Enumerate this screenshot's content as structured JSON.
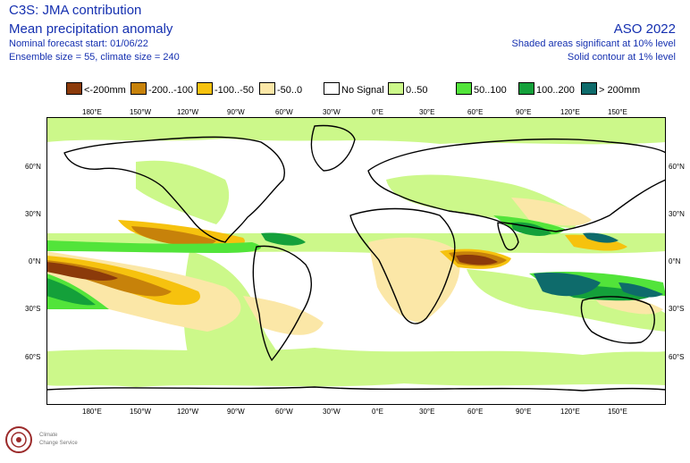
{
  "header": {
    "title": "C3S: JMA contribution",
    "subtitle": "Mean precipitation anomaly",
    "forecast_start": "Nominal forecast start: 01/06/22",
    "ensemble": "Ensemble size = 55, climate size = 240",
    "season": "ASO 2022",
    "significance_shaded": "Shaded areas significant at 10% level",
    "significance_contour": "Solid contour at 1% level"
  },
  "legend": [
    {
      "label": "<-200mm",
      "color": "#8b3a0a"
    },
    {
      "label": "-200..-100",
      "color": "#c7820a"
    },
    {
      "label": "-100..-50",
      "color": "#f6c20e"
    },
    {
      "label": "-50..0",
      "color": "#fbe7a7"
    },
    {
      "label": "No Signal",
      "color": "#ffffff"
    },
    {
      "label": "0..50",
      "color": "#ccf88a"
    },
    {
      "label": "50..100",
      "color": "#52e43a"
    },
    {
      "label": "100..200",
      "color": "#14a03a"
    },
    {
      "label": "> 200mm",
      "color": "#0e6b6b"
    }
  ],
  "axes": {
    "lon_labels": [
      "180°E",
      "150°W",
      "120°W",
      "90°W",
      "60°W",
      "30°W",
      "0°E",
      "30°E",
      "60°E",
      "90°E",
      "120°E",
      "150°E"
    ],
    "lat_labels": [
      "60°N",
      "30°N",
      "0°N",
      "30°S",
      "60°S"
    ]
  },
  "logo": {
    "line1": "Climate",
    "line2": "Change Service"
  },
  "colors": {
    "title": "#1530b0",
    "coast": "#000000",
    "borders": "#9a9a9a"
  }
}
